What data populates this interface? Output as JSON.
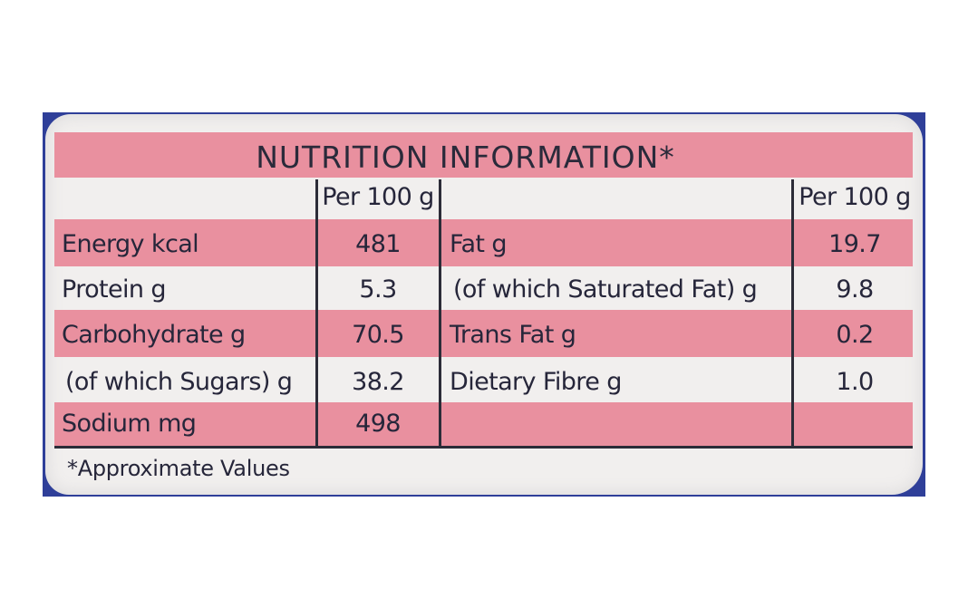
{
  "title": "NUTRITION INFORMATION*",
  "column_header": "Per 100 g",
  "left_rows": [
    {
      "nutrient": "Energy kcal",
      "value": "481"
    },
    {
      "nutrient": "Protein g",
      "value": "5.3"
    },
    {
      "nutrient": "Carbohydrate g",
      "value": "70.5"
    },
    {
      "nutrient": "(of which Sugars) g",
      "value": "38.2"
    },
    {
      "nutrient": "Sodium mg",
      "value": "498"
    }
  ],
  "right_rows": [
    {
      "nutrient": "Fat g",
      "value": "19.7"
    },
    {
      "nutrient": "(of which Saturated Fat) g",
      "value": "9.8"
    },
    {
      "nutrient": "Trans Fat g",
      "value": "0.2"
    },
    {
      "nutrient": "Dietary Fibre g",
      "value": "1.0"
    }
  ],
  "footnote": "*Approximate Values",
  "colors": {
    "band_pink": "#e9909f",
    "label_bg": "#f1efee",
    "wrapper_blue": "#2f3f99",
    "ink": "#26263a"
  }
}
